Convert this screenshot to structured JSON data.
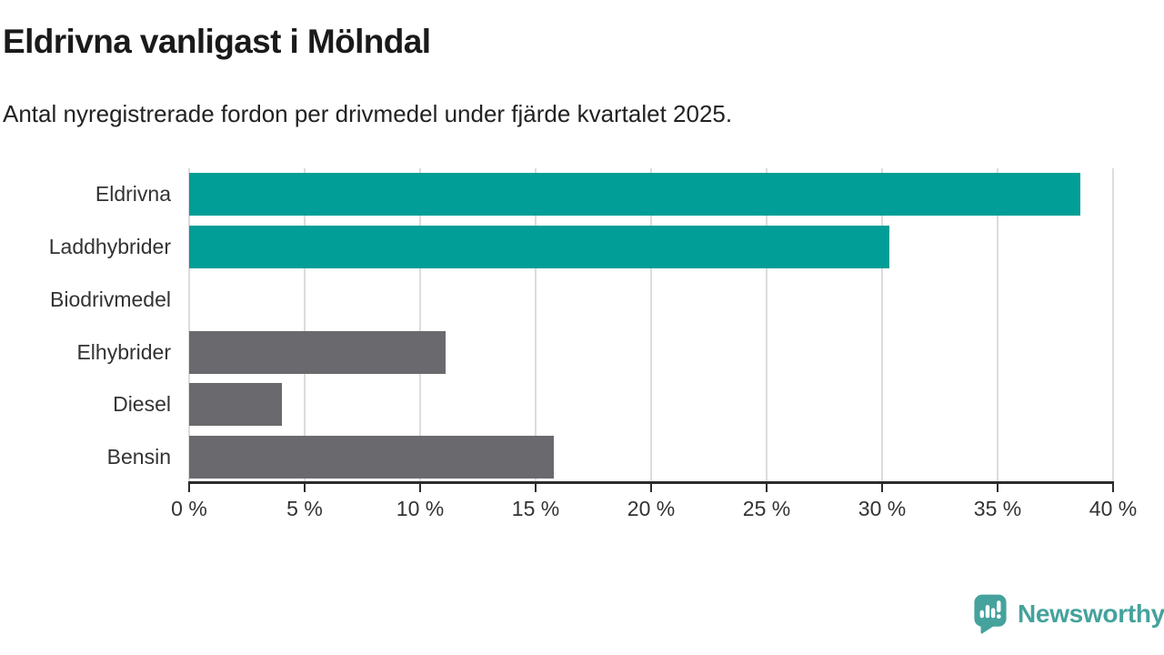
{
  "header": {
    "title": "Eldrivna vanligast i Mölndal",
    "subtitle": "Antal nyregistrerade fordon per drivmedel under fjärde kvartalet 2025."
  },
  "chart_data": {
    "type": "bar",
    "orientation": "horizontal",
    "title": "Eldrivna vanligast i Mölndal",
    "subtitle": "Antal nyregistrerade fordon per drivmedel under fjärde kvartalet 2025.",
    "categories": [
      "Eldrivna",
      "Laddhybrider",
      "Biodrivmedel",
      "Elhybrider",
      "Diesel",
      "Bensin"
    ],
    "values": [
      38.6,
      30.3,
      0,
      11.1,
      4.0,
      15.8
    ],
    "unit": "%",
    "xlim": [
      0,
      40
    ],
    "x_ticks": [
      0,
      5,
      10,
      15,
      20,
      25,
      30,
      35,
      40
    ],
    "x_tick_labels": [
      "0 %",
      "5 %",
      "10 %",
      "15 %",
      "20 %",
      "25 %",
      "30 %",
      "35 %",
      "40 %"
    ],
    "bar_colors": [
      "#009e96",
      "#009e96",
      "#6a6a6e",
      "#6a6a6e",
      "#6a6a6e",
      "#6a6a6e"
    ],
    "highlight_color": "#009e96",
    "default_color": "#6a6a6e",
    "grid": true,
    "grid_color": "#dcdcdc",
    "axis_color": "#2d2d2d",
    "tick_label_color": "#333333",
    "category_label_color": "#333333",
    "xlabel": "",
    "ylabel": "",
    "legend": null,
    "data_labels": false
  },
  "footer": {
    "brand": "Newsworthy",
    "brand_color": "#45a29c",
    "logo_icon": "newsworthy-bar-chart-speech-bubble-icon"
  }
}
